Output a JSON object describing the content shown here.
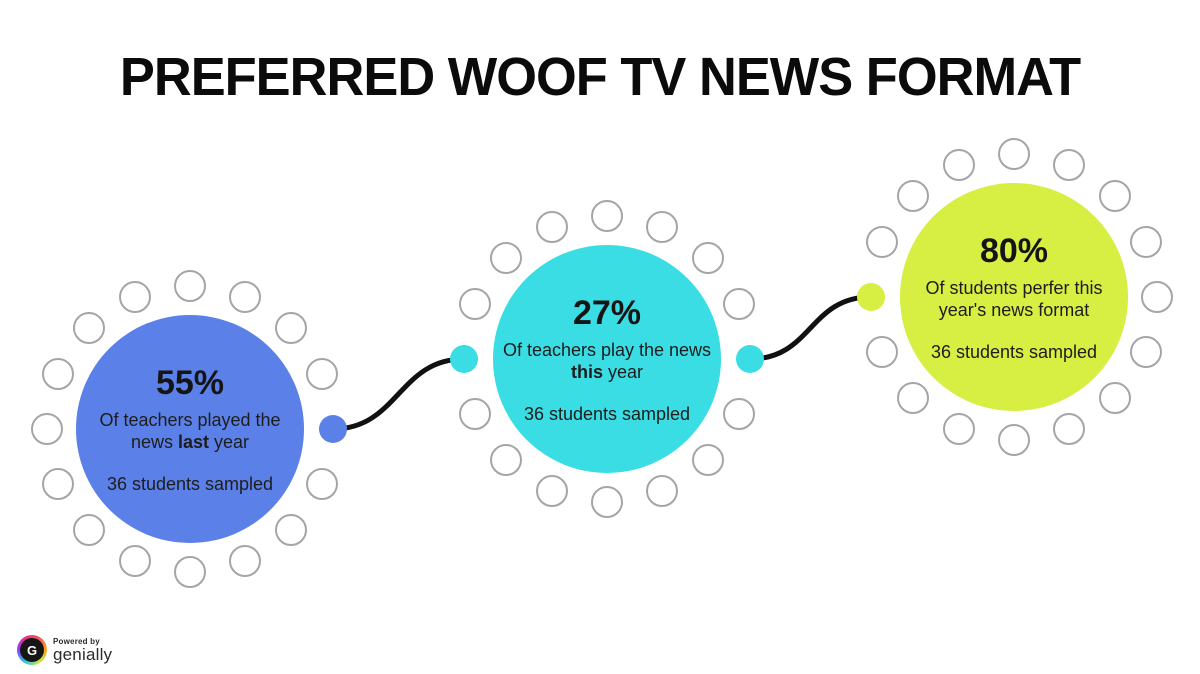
{
  "title": "PREFERRED WOOF TV NEWS FORMAT",
  "chart_data": {
    "type": "bar",
    "visual_style": "stat-bubble-infographic",
    "title": "PREFERRED WOOF TV NEWS FORMAT",
    "categories": [
      "Of teachers played the news last year",
      "Of teachers play the news this year",
      "Of students perfer this year's news format"
    ],
    "values": [
      55,
      27,
      80
    ],
    "unit": "%",
    "sample_notes": [
      "36 students sampled",
      "36 students sampled",
      "36 students sampled"
    ],
    "colors": [
      "#5b80e8",
      "#3adde4",
      "#d7ee43"
    ]
  },
  "bubbles": [
    {
      "id": "last-year",
      "color": "#5b80e8",
      "percentage": "55%",
      "desc_before": "Of teachers played the news ",
      "desc_bold": "last",
      "desc_after": " year",
      "sample": "36 students sampled"
    },
    {
      "id": "this-year",
      "color": "#3adde4",
      "percentage": "27%",
      "desc_before": "Of teachers play the news ",
      "desc_bold": "this",
      "desc_after": " year",
      "sample": "36 students sampled"
    },
    {
      "id": "preferred-format",
      "color": "#d7ee43",
      "percentage": "80%",
      "desc_before": "Of students perfer this year's news format",
      "desc_bold": "",
      "desc_after": "",
      "sample": "36 students sampled"
    }
  ],
  "footer": {
    "powered_by": "Powered by",
    "brand": "genially",
    "brand_initial": "G"
  }
}
